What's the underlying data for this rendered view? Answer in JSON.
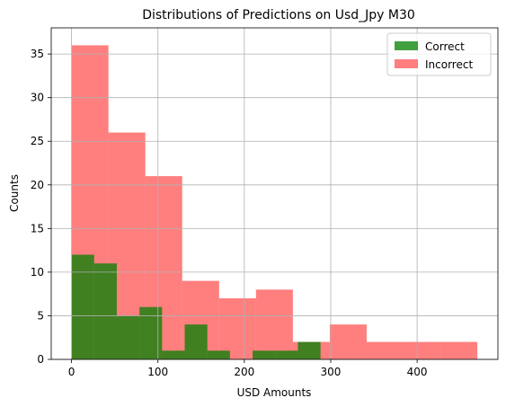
{
  "chart_data": {
    "type": "histogram",
    "title": "Distributions of Predictions on Usd_Jpy M30",
    "xlabel": "USD Amounts",
    "ylabel": "Counts",
    "xlim": [
      -23.5,
      493.5
    ],
    "ylim": [
      0,
      38
    ],
    "xticks": [
      0,
      100,
      200,
      300,
      400
    ],
    "yticks": [
      0,
      5,
      10,
      15,
      20,
      25,
      30,
      35
    ],
    "grid": true,
    "legend_position": "top-right",
    "series": [
      {
        "name": "Incorrect",
        "color": "#ff0000",
        "alpha": 0.5,
        "bin_edges": [
          0,
          42.7,
          85.4,
          128.1,
          170.8,
          213.5,
          256.2,
          298.9,
          341.6,
          384.3,
          427.0,
          469.7
        ],
        "counts": [
          36,
          26,
          21,
          9,
          7,
          8,
          2,
          4,
          2,
          2,
          2
        ]
      },
      {
        "name": "Correct",
        "color": "#008000",
        "alpha": 0.75,
        "bin_edges": [
          0,
          26.2,
          52.4,
          78.6,
          104.8,
          131.0,
          157.2,
          183.4,
          209.6,
          235.8,
          262.0,
          288.2
        ],
        "counts": [
          12,
          11,
          5,
          6,
          1,
          4,
          1,
          0,
          1,
          1,
          2
        ]
      }
    ],
    "legend_order": [
      "Correct",
      "Incorrect"
    ]
  }
}
